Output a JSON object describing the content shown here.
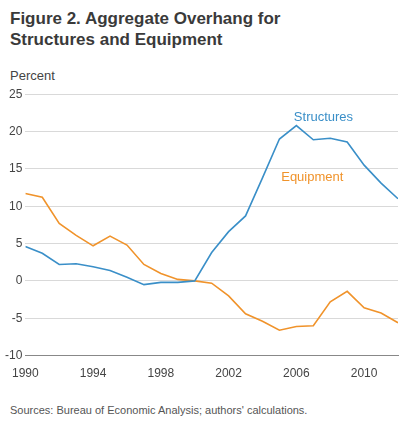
{
  "chart_data": {
    "type": "line",
    "title": "Figure 2. Aggregate Overhang for Structures and Equipment",
    "y_label": "Percent",
    "source": "Sources: Bureau of Economic Analysis; authors' calculations.",
    "x": [
      1990,
      1991,
      1992,
      1993,
      1994,
      1995,
      1996,
      1997,
      1998,
      1999,
      2000,
      2001,
      2002,
      2003,
      2004,
      2005,
      2006,
      2007,
      2008,
      2009,
      2010,
      2011,
      2012
    ],
    "series": [
      {
        "name": "Structures",
        "color": "#3a8fc8",
        "values": [
          4.6,
          3.7,
          2.2,
          2.3,
          1.9,
          1.4,
          0.5,
          -0.5,
          -0.2,
          -0.2,
          0.0,
          3.8,
          6.6,
          8.7,
          13.8,
          19.0,
          20.8,
          18.9,
          19.1,
          18.6,
          15.5,
          13.1,
          11.0
        ]
      },
      {
        "name": "Equipment",
        "color": "#f0932b",
        "values": [
          11.7,
          11.2,
          7.7,
          6.1,
          4.7,
          6.0,
          4.8,
          2.2,
          1.0,
          0.2,
          0.0,
          -0.3,
          -2.0,
          -4.4,
          -5.4,
          -6.6,
          -6.1,
          -6.0,
          -2.8,
          -1.4,
          -3.6,
          -4.3,
          -5.6
        ]
      }
    ],
    "xlim": [
      1990,
      2012
    ],
    "xticks": [
      1990,
      1994,
      1998,
      2002,
      2006,
      2010
    ],
    "ylim": [
      -10,
      25
    ],
    "yticks": [
      -10,
      -5,
      0,
      5,
      10,
      15,
      20,
      25
    ],
    "grid": true
  }
}
